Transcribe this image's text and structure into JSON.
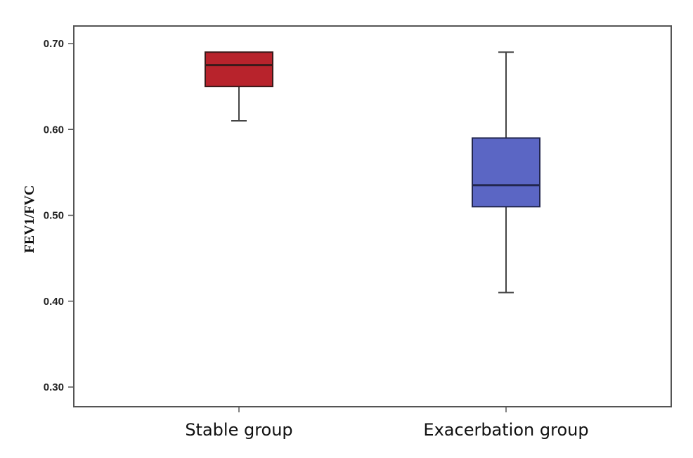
{
  "chart_data": {
    "type": "boxplot",
    "ylabel": "FEV1/FVC",
    "xlabel": "",
    "ylim": [
      0.28,
      0.72
    ],
    "yticks": [
      {
        "value": 0.3,
        "label": "0.30"
      },
      {
        "value": 0.4,
        "label": "0.40"
      },
      {
        "value": 0.5,
        "label": "0.50"
      },
      {
        "value": 0.6,
        "label": "0.60"
      },
      {
        "value": 0.7,
        "label": "0.70"
      }
    ],
    "grid": false,
    "legend": "none",
    "groups": [
      {
        "category": "Stable group",
        "whisker_low": 0.61,
        "q1": 0.65,
        "median": 0.675,
        "q3": 0.69,
        "whisker_high": 0.69,
        "color": "#b8232c",
        "edge": "#3b1a1a"
      },
      {
        "category": "Exacerbation group",
        "whisker_low": 0.41,
        "q1": 0.51,
        "median": 0.535,
        "q3": 0.59,
        "whisker_high": 0.69,
        "color": "#5b66c4",
        "edge": "#22264e"
      }
    ]
  }
}
